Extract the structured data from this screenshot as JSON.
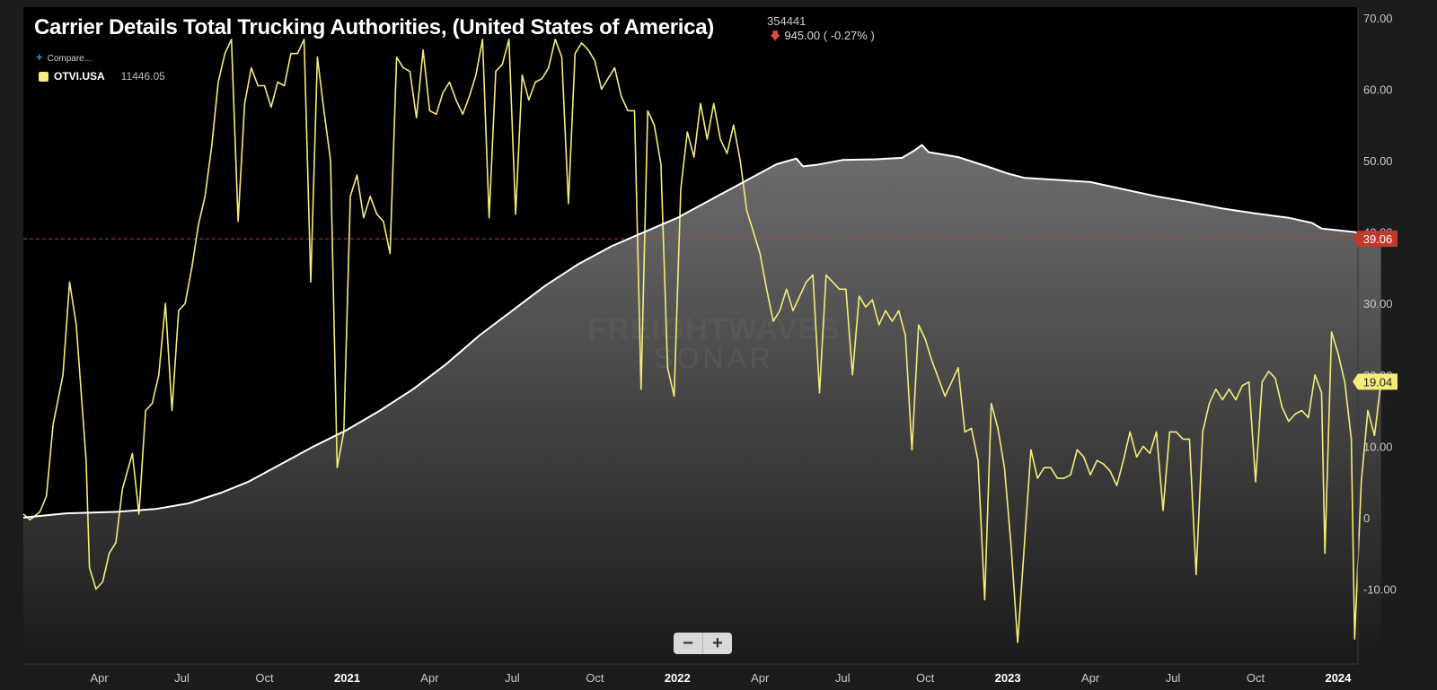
{
  "header": {
    "title": "Carrier Details Total Trucking Authorities, (United States of America)",
    "last_value": "354441",
    "change": "945.00 ( -0.27% )",
    "compare_label": "Compare...",
    "legend": {
      "ticker": "OTVI.USA",
      "value": "11446.05"
    }
  },
  "watermark": {
    "line1": "FREIGHTWAVES",
    "line2": "SONAR"
  },
  "zoom": {
    "minus": "−",
    "plus": "+"
  },
  "colors": {
    "otvi": "#f5ec7a",
    "authorities": "#ffffff",
    "reference": "#c0392b",
    "background": "#000000"
  },
  "chart_data": {
    "type": "line",
    "x_ticks": [
      {
        "label": "Apr",
        "x": 2020.25
      },
      {
        "label": "Jul",
        "x": 2020.5
      },
      {
        "label": "Oct",
        "x": 2020.75
      },
      {
        "label": "2021",
        "x": 2021.0,
        "bold": true
      },
      {
        "label": "Apr",
        "x": 2021.25
      },
      {
        "label": "Jul",
        "x": 2021.5
      },
      {
        "label": "Oct",
        "x": 2021.75
      },
      {
        "label": "2022",
        "x": 2022.0,
        "bold": true
      },
      {
        "label": "Apr",
        "x": 2022.25
      },
      {
        "label": "Jul",
        "x": 2022.5
      },
      {
        "label": "Oct",
        "x": 2022.75
      },
      {
        "label": "2023",
        "x": 2023.0,
        "bold": true
      },
      {
        "label": "Apr",
        "x": 2023.25
      },
      {
        "label": "Jul",
        "x": 2023.5
      },
      {
        "label": "Oct",
        "x": 2023.75
      },
      {
        "label": "2024",
        "x": 2024.0,
        "bold": true
      }
    ],
    "y_ticks": [
      "70.00",
      "60.00",
      "50.00",
      "40.00",
      "30.00",
      "20.00",
      "10.00",
      "0",
      "-10.00"
    ],
    "y_tick_values": [
      70,
      60,
      50,
      40,
      30,
      20,
      10,
      0,
      -10
    ],
    "xlim": [
      2020.02,
      2024.06
    ],
    "ylim": [
      -20.5,
      71.5
    ],
    "reference_line": {
      "value": 39.06,
      "label": "39.06"
    },
    "last_label": {
      "value": 19.04,
      "label": "19.04"
    },
    "series": [
      {
        "name": "OTVI.USA",
        "area": false,
        "values": [
          [
            2020.02,
            0.5
          ],
          [
            2020.04,
            -0.3
          ],
          [
            2020.07,
            0.8
          ],
          [
            2020.09,
            3.0
          ],
          [
            2020.11,
            13.0
          ],
          [
            2020.14,
            20.0
          ],
          [
            2020.16,
            33.0
          ],
          [
            2020.18,
            27.0
          ],
          [
            2020.21,
            8.0
          ],
          [
            2020.22,
            -7.0
          ],
          [
            2020.24,
            -10.0
          ],
          [
            2020.26,
            -9.0
          ],
          [
            2020.28,
            -5.0
          ],
          [
            2020.3,
            -3.5
          ],
          [
            2020.32,
            4.0
          ],
          [
            2020.35,
            9.0
          ],
          [
            2020.37,
            0.5
          ],
          [
            2020.39,
            15.0
          ],
          [
            2020.41,
            16.0
          ],
          [
            2020.43,
            20.0
          ],
          [
            2020.45,
            30.0
          ],
          [
            2020.47,
            15.0
          ],
          [
            2020.49,
            29.0
          ],
          [
            2020.51,
            30.0
          ],
          [
            2020.53,
            35.0
          ],
          [
            2020.55,
            41.0
          ],
          [
            2020.57,
            45.0
          ],
          [
            2020.59,
            52.0
          ],
          [
            2020.61,
            61.0
          ],
          [
            2020.63,
            65.0
          ],
          [
            2020.65,
            67.0
          ],
          [
            2020.67,
            41.5
          ],
          [
            2020.69,
            58.0
          ],
          [
            2020.71,
            63.0
          ],
          [
            2020.73,
            60.5
          ],
          [
            2020.75,
            60.5
          ],
          [
            2020.77,
            57.5
          ],
          [
            2020.79,
            61.0
          ],
          [
            2020.81,
            60.5
          ],
          [
            2020.83,
            65.0
          ],
          [
            2020.85,
            65.0
          ],
          [
            2020.87,
            67.0
          ],
          [
            2020.89,
            33.0
          ],
          [
            2020.91,
            64.5
          ],
          [
            2020.93,
            57.0
          ],
          [
            2020.95,
            50.0
          ],
          [
            2020.97,
            7.0
          ],
          [
            2020.99,
            12.0
          ],
          [
            2021.01,
            45.0
          ],
          [
            2021.03,
            48.0
          ],
          [
            2021.05,
            42.0
          ],
          [
            2021.07,
            45.0
          ],
          [
            2021.09,
            42.5
          ],
          [
            2021.11,
            41.5
          ],
          [
            2021.13,
            37.0
          ],
          [
            2021.15,
            64.5
          ],
          [
            2021.17,
            63.0
          ],
          [
            2021.19,
            62.5
          ],
          [
            2021.21,
            56.0
          ],
          [
            2021.23,
            65.5
          ],
          [
            2021.25,
            57.0
          ],
          [
            2021.27,
            56.5
          ],
          [
            2021.29,
            59.5
          ],
          [
            2021.31,
            61.0
          ],
          [
            2021.33,
            58.5
          ],
          [
            2021.35,
            56.5
          ],
          [
            2021.37,
            59.0
          ],
          [
            2021.39,
            62.0
          ],
          [
            2021.41,
            67.0
          ],
          [
            2021.43,
            42.0
          ],
          [
            2021.45,
            62.5
          ],
          [
            2021.47,
            63.5
          ],
          [
            2021.49,
            67.0
          ],
          [
            2021.51,
            42.5
          ],
          [
            2021.53,
            62.0
          ],
          [
            2021.55,
            58.5
          ],
          [
            2021.57,
            61.0
          ],
          [
            2021.59,
            61.5
          ],
          [
            2021.61,
            63.0
          ],
          [
            2021.63,
            67.0
          ],
          [
            2021.65,
            64.5
          ],
          [
            2021.67,
            44.0
          ],
          [
            2021.69,
            65.0
          ],
          [
            2021.71,
            66.5
          ],
          [
            2021.73,
            65.5
          ],
          [
            2021.75,
            64.0
          ],
          [
            2021.77,
            60.0
          ],
          [
            2021.79,
            61.5
          ],
          [
            2021.81,
            63.0
          ],
          [
            2021.83,
            59.0
          ],
          [
            2021.85,
            57.0
          ],
          [
            2021.87,
            57.0
          ],
          [
            2021.89,
            18.0
          ],
          [
            2021.91,
            57.0
          ],
          [
            2021.93,
            55.0
          ],
          [
            2021.95,
            49.5
          ],
          [
            2021.97,
            21.0
          ],
          [
            2021.99,
            17.0
          ],
          [
            2022.01,
            46.0
          ],
          [
            2022.03,
            54.0
          ],
          [
            2022.05,
            50.5
          ],
          [
            2022.07,
            58.0
          ],
          [
            2022.09,
            53.0
          ],
          [
            2022.11,
            58.0
          ],
          [
            2022.13,
            53.0
          ],
          [
            2022.15,
            51.0
          ],
          [
            2022.17,
            55.0
          ],
          [
            2022.19,
            50.0
          ],
          [
            2022.21,
            43.0
          ],
          [
            2022.23,
            40.0
          ],
          [
            2022.25,
            37.0
          ],
          [
            2022.27,
            32.0
          ],
          [
            2022.29,
            27.5
          ],
          [
            2022.31,
            29.0
          ],
          [
            2022.33,
            32.0
          ],
          [
            2022.35,
            29.0
          ],
          [
            2022.37,
            31.0
          ],
          [
            2022.39,
            33.0
          ],
          [
            2022.41,
            34.0
          ],
          [
            2022.43,
            17.5
          ],
          [
            2022.45,
            34.0
          ],
          [
            2022.47,
            33.0
          ],
          [
            2022.49,
            32.0
          ],
          [
            2022.51,
            32.0
          ],
          [
            2022.53,
            20.0
          ],
          [
            2022.55,
            31.0
          ],
          [
            2022.57,
            29.5
          ],
          [
            2022.59,
            30.5
          ],
          [
            2022.61,
            27.0
          ],
          [
            2022.63,
            29.0
          ],
          [
            2022.65,
            27.5
          ],
          [
            2022.67,
            29.0
          ],
          [
            2022.69,
            25.5
          ],
          [
            2022.71,
            9.5
          ],
          [
            2022.73,
            27.0
          ],
          [
            2022.75,
            25.0
          ],
          [
            2022.77,
            22.0
          ],
          [
            2022.79,
            19.5
          ],
          [
            2022.81,
            17.0
          ],
          [
            2022.83,
            19.0
          ],
          [
            2022.85,
            21.0
          ],
          [
            2022.87,
            12.0
          ],
          [
            2022.89,
            12.5
          ],
          [
            2022.91,
            8.0
          ],
          [
            2022.93,
            -11.5
          ],
          [
            2022.95,
            16.0
          ],
          [
            2022.97,
            12.5
          ],
          [
            2022.99,
            7.0
          ],
          [
            2023.01,
            -4.0
          ],
          [
            2023.03,
            -17.5
          ],
          [
            2023.05,
            -4.0
          ],
          [
            2023.07,
            9.5
          ],
          [
            2023.09,
            5.5
          ],
          [
            2023.11,
            7.0
          ],
          [
            2023.13,
            7.0
          ],
          [
            2023.15,
            5.5
          ],
          [
            2023.17,
            5.5
          ],
          [
            2023.19,
            6.0
          ],
          [
            2023.21,
            9.5
          ],
          [
            2023.23,
            8.5
          ],
          [
            2023.25,
            6.0
          ],
          [
            2023.27,
            8.0
          ],
          [
            2023.29,
            7.5
          ],
          [
            2023.31,
            6.5
          ],
          [
            2023.33,
            4.5
          ],
          [
            2023.35,
            8.0
          ],
          [
            2023.37,
            12.0
          ],
          [
            2023.39,
            8.5
          ],
          [
            2023.41,
            10.0
          ],
          [
            2023.43,
            9.0
          ],
          [
            2023.45,
            12.0
          ],
          [
            2023.47,
            1.0
          ],
          [
            2023.49,
            12.0
          ],
          [
            2023.51,
            12.0
          ],
          [
            2023.53,
            11.0
          ],
          [
            2023.55,
            11.0
          ],
          [
            2023.57,
            -8.0
          ],
          [
            2023.59,
            12.0
          ],
          [
            2023.61,
            16.0
          ],
          [
            2023.63,
            18.0
          ],
          [
            2023.65,
            16.5
          ],
          [
            2023.67,
            18.0
          ],
          [
            2023.69,
            16.5
          ],
          [
            2023.71,
            18.5
          ],
          [
            2023.73,
            19.0
          ],
          [
            2023.75,
            5.0
          ],
          [
            2023.77,
            19.0
          ],
          [
            2023.79,
            20.5
          ],
          [
            2023.81,
            19.5
          ],
          [
            2023.83,
            15.5
          ],
          [
            2023.85,
            13.5
          ],
          [
            2023.87,
            14.5
          ],
          [
            2023.89,
            15.0
          ],
          [
            2023.91,
            14.0
          ],
          [
            2023.93,
            20.0
          ],
          [
            2023.95,
            17.5
          ],
          [
            2023.96,
            -5.0
          ],
          [
            2023.98,
            26.0
          ],
          [
            2024.0,
            23.0
          ],
          [
            2024.02,
            19.0
          ],
          [
            2024.04,
            11.0
          ],
          [
            2024.05,
            -17.0
          ],
          [
            2024.07,
            5.0
          ],
          [
            2024.09,
            15.0
          ],
          [
            2024.11,
            11.5
          ],
          [
            2024.13,
            19.04
          ]
        ]
      },
      {
        "name": "Total Trucking Authorities",
        "area": true,
        "values": [
          [
            2020.02,
            0.0
          ],
          [
            2020.15,
            0.6
          ],
          [
            2020.3,
            0.8
          ],
          [
            2020.42,
            1.2
          ],
          [
            2020.52,
            2.0
          ],
          [
            2020.62,
            3.5
          ],
          [
            2020.7,
            5.0
          ],
          [
            2020.8,
            7.5
          ],
          [
            2020.9,
            10.0
          ],
          [
            2021.0,
            12.3
          ],
          [
            2021.1,
            15.0
          ],
          [
            2021.2,
            18.0
          ],
          [
            2021.3,
            21.5
          ],
          [
            2021.4,
            25.5
          ],
          [
            2021.5,
            29.0
          ],
          [
            2021.6,
            32.5
          ],
          [
            2021.7,
            35.5
          ],
          [
            2021.8,
            38.0
          ],
          [
            2021.9,
            40.0
          ],
          [
            2022.0,
            42.0
          ],
          [
            2022.1,
            44.5
          ],
          [
            2022.2,
            47.0
          ],
          [
            2022.3,
            49.5
          ],
          [
            2022.36,
            50.3
          ],
          [
            2022.38,
            49.2
          ],
          [
            2022.42,
            49.4
          ],
          [
            2022.5,
            50.1
          ],
          [
            2022.6,
            50.2
          ],
          [
            2022.68,
            50.4
          ],
          [
            2022.72,
            51.5
          ],
          [
            2022.74,
            52.2
          ],
          [
            2022.76,
            51.2
          ],
          [
            2022.85,
            50.5
          ],
          [
            2022.95,
            49.0
          ],
          [
            2023.0,
            48.2
          ],
          [
            2023.05,
            47.6
          ],
          [
            2023.15,
            47.3
          ],
          [
            2023.25,
            47.0
          ],
          [
            2023.35,
            46.0
          ],
          [
            2023.45,
            45.0
          ],
          [
            2023.55,
            44.2
          ],
          [
            2023.65,
            43.3
          ],
          [
            2023.75,
            42.6
          ],
          [
            2023.85,
            42.0
          ],
          [
            2023.92,
            41.3
          ],
          [
            2023.95,
            40.5
          ],
          [
            2024.05,
            40.0
          ],
          [
            2024.13,
            39.06
          ]
        ]
      }
    ]
  }
}
